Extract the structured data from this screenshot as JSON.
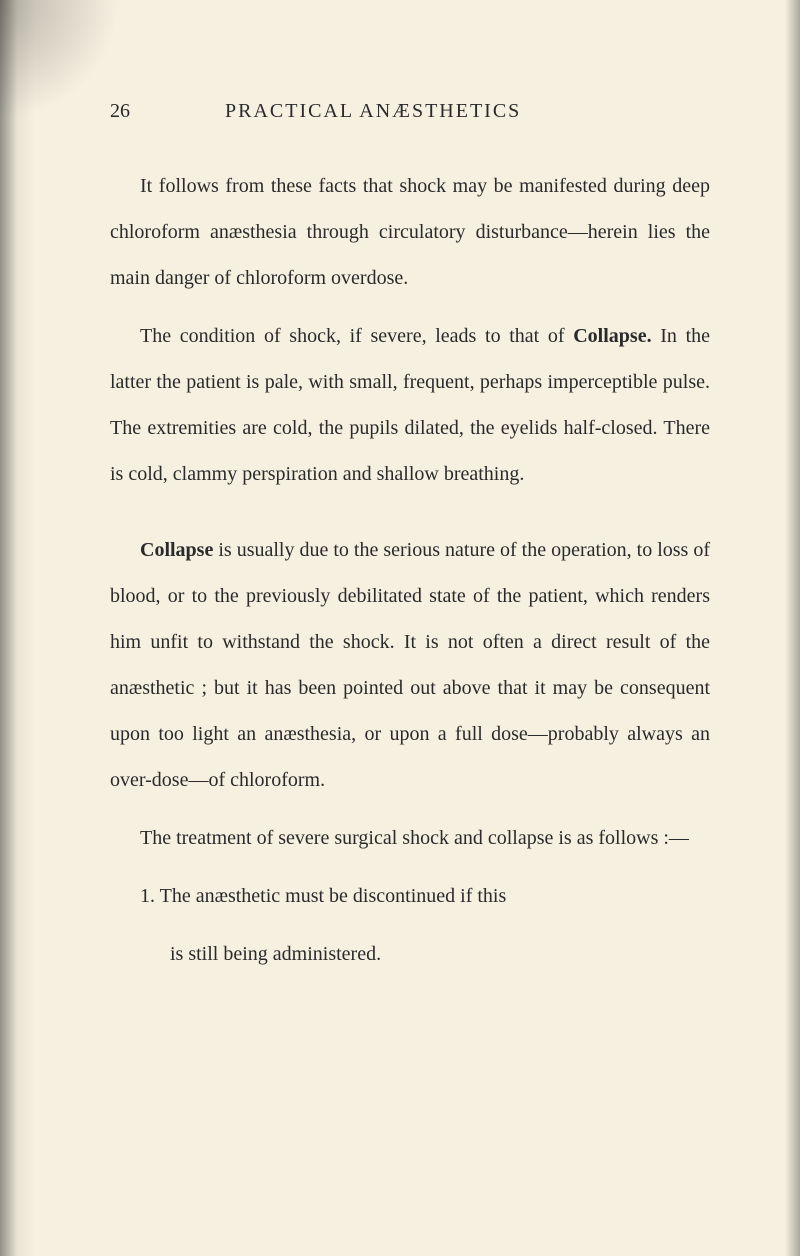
{
  "page": {
    "number": "26",
    "title": "PRACTICAL ANÆSTHETICS"
  },
  "paragraphs": {
    "p1": "It follows from these facts that shock may be manifested during deep chloroform anæsthesia through circulatory disturbance—herein lies the main danger of chloroform overdose.",
    "p2_before": "The condition of shock, if severe, leads to that of ",
    "p2_bold": "Collapse.",
    "p2_after": " In the latter the patient is pale, with small, frequent, perhaps imperceptible pulse. The extremities are cold, the pupils dilated, the eyelids half-closed. There is cold, clammy perspiration and shallow breathing.",
    "p3_bold": "Collapse",
    "p3_after": " is usually due to the serious nature of the operation, to loss of blood, or to the previously debilitated state of the patient, which renders him unfit to withstand the shock. It is not often a direct result of the anæsthetic ; but it has been pointed out above that it may be consequent upon too light an anæsthesia, or upon a full dose—probably always an over-dose—of chloroform.",
    "p4": "The treatment of severe surgical shock and collapse is as follows :—",
    "p5": "1. The anæsthetic must be discontinued if this",
    "p5_cont": "is still being administered."
  },
  "colors": {
    "background": "#f5f0e0",
    "text": "#2a2a2a"
  },
  "typography": {
    "body_fontsize": 20,
    "line_height": 2.3,
    "font_family": "Georgia, serif"
  }
}
